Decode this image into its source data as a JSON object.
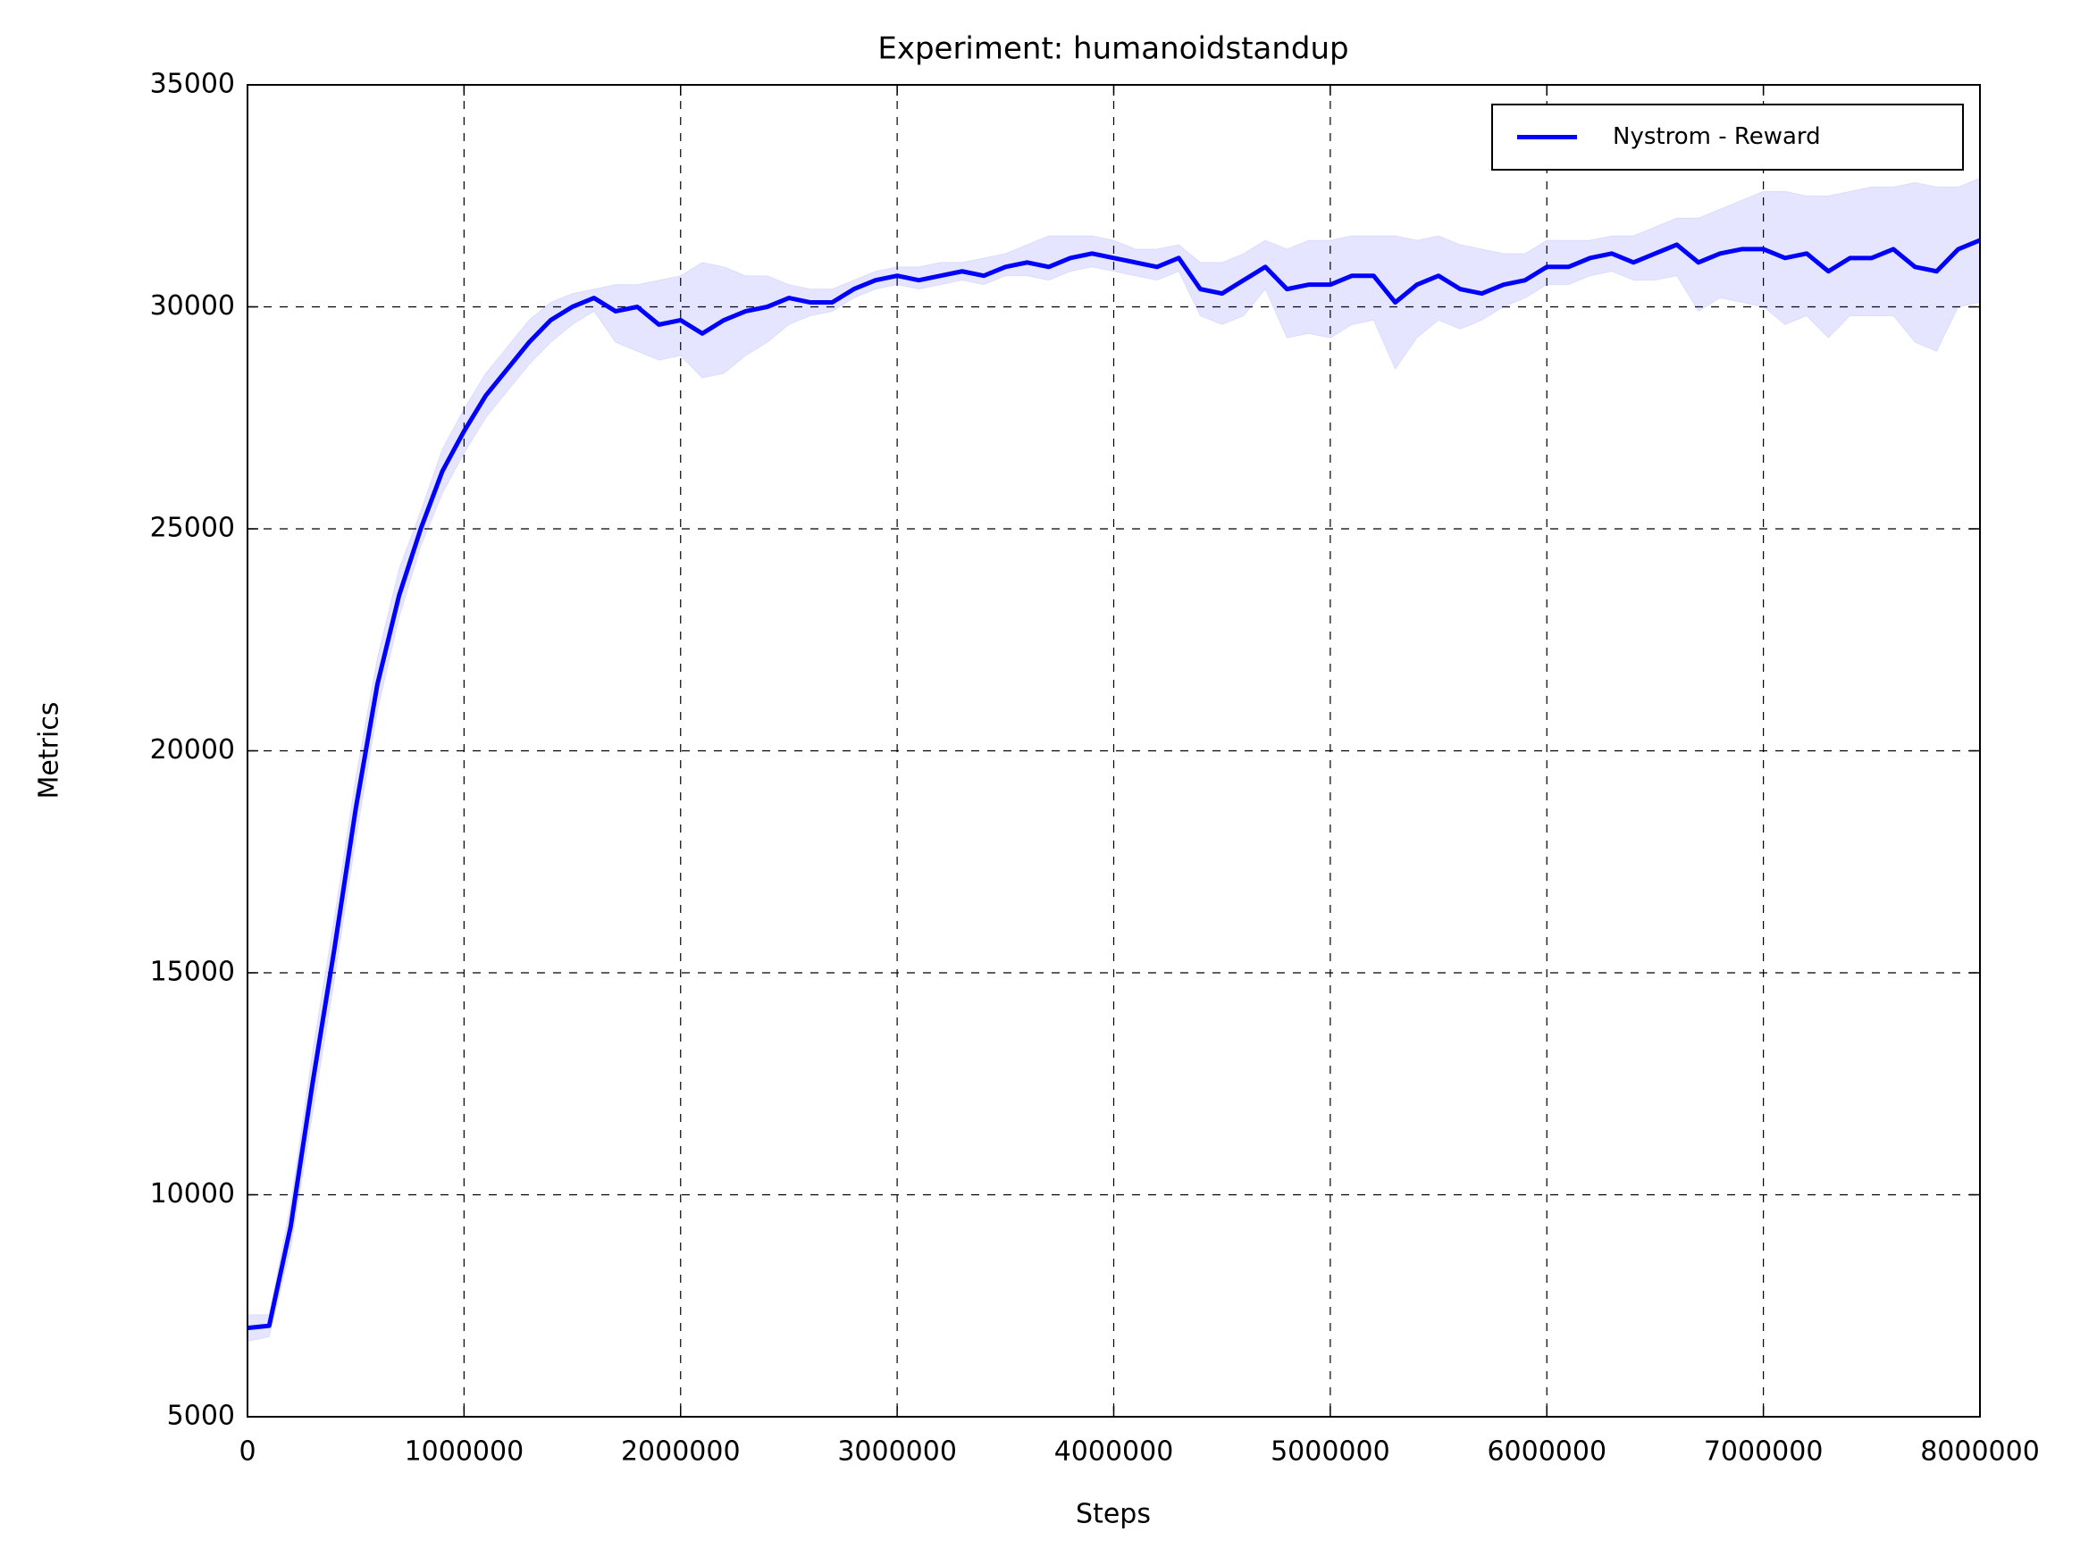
{
  "chart_data": {
    "type": "line",
    "title": "Experiment: humanoidstandup",
    "x_label": "Steps",
    "y_label": "Metrics",
    "x": [
      0,
      100000,
      200000,
      300000,
      400000,
      500000,
      600000,
      700000,
      800000,
      900000,
      1000000,
      1100000,
      1200000,
      1300000,
      1400000,
      1500000,
      1600000,
      1700000,
      1800000,
      1900000,
      2000000,
      2100000,
      2200000,
      2300000,
      2400000,
      2500000,
      2600000,
      2700000,
      2800000,
      2900000,
      3000000,
      3100000,
      3200000,
      3300000,
      3400000,
      3500000,
      3600000,
      3700000,
      3800000,
      3900000,
      4000000,
      4100000,
      4200000,
      4300000,
      4400000,
      4500000,
      4600000,
      4700000,
      4800000,
      4900000,
      5000000,
      5100000,
      5200000,
      5300000,
      5400000,
      5500000,
      5600000,
      5700000,
      5800000,
      5900000,
      6000000,
      6100000,
      6200000,
      6300000,
      6400000,
      6500000,
      6600000,
      6700000,
      6800000,
      6900000,
      7000000,
      7100000,
      7200000,
      7300000,
      7400000,
      7500000,
      7600000,
      7700000,
      7800000,
      7900000,
      8000000
    ],
    "series": [
      {
        "name": "Nystrom - Reward",
        "color": "#0000ff",
        "band_color": "#0000ff",
        "values": [
          7000,
          7050,
          9300,
          12500,
          15500,
          18700,
          21500,
          23500,
          25000,
          26300,
          27200,
          28000,
          28600,
          29200,
          29700,
          30000,
          30200,
          29900,
          30000,
          29600,
          29700,
          29400,
          29700,
          29900,
          30000,
          30200,
          30100,
          30100,
          30400,
          30600,
          30700,
          30600,
          30700,
          30800,
          30700,
          30900,
          31000,
          30900,
          31100,
          31200,
          31100,
          31000,
          30900,
          31100,
          30400,
          30300,
          30600,
          30900,
          30400,
          30500,
          30500,
          30700,
          30700,
          30100,
          30500,
          30700,
          30400,
          30300,
          30500,
          30600,
          30900,
          30900,
          31100,
          31200,
          31000,
          31200,
          31400,
          31000,
          31200,
          31300,
          31300,
          31100,
          31200,
          30800,
          31100,
          31100,
          31300,
          30900,
          30800,
          31300,
          31500
        ],
        "lower": [
          6700,
          6800,
          8800,
          11800,
          14800,
          18000,
          20900,
          23000,
          24600,
          25800,
          26700,
          27500,
          28100,
          28700,
          29200,
          29600,
          29900,
          29200,
          29000,
          28800,
          28900,
          28400,
          28500,
          28900,
          29200,
          29600,
          29800,
          29900,
          30200,
          30400,
          30500,
          30400,
          30500,
          30600,
          30500,
          30700,
          30700,
          30600,
          30800,
          30900,
          30800,
          30700,
          30600,
          30800,
          29800,
          29600,
          29800,
          30400,
          29300,
          29400,
          29300,
          29600,
          29700,
          28600,
          29300,
          29700,
          29500,
          29700,
          30000,
          30200,
          30500,
          30500,
          30700,
          30800,
          30600,
          30600,
          30700,
          29900,
          30200,
          30100,
          30000,
          29600,
          29800,
          29300,
          29800,
          29800,
          29800,
          29200,
          29000,
          30000,
          30100
        ],
        "upper": [
          7300,
          7300,
          9800,
          13200,
          16200,
          19400,
          22100,
          24100,
          25400,
          26800,
          27700,
          28500,
          29100,
          29700,
          30100,
          30300,
          30400,
          30500,
          30500,
          30600,
          30700,
          31000,
          30900,
          30700,
          30700,
          30500,
          30400,
          30400,
          30600,
          30800,
          30900,
          30900,
          31000,
          31000,
          31100,
          31200,
          31400,
          31600,
          31600,
          31600,
          31500,
          31300,
          31300,
          31400,
          31000,
          31000,
          31200,
          31500,
          31300,
          31500,
          31500,
          31600,
          31600,
          31600,
          31500,
          31600,
          31400,
          31300,
          31200,
          31200,
          31500,
          31500,
          31500,
          31600,
          31600,
          31800,
          32000,
          32000,
          32200,
          32400,
          32600,
          32600,
          32500,
          32500,
          32600,
          32700,
          32700,
          32800,
          32700,
          32700,
          32900
        ]
      }
    ],
    "xlim": [
      0,
      8000000
    ],
    "ylim": [
      5000,
      35000
    ],
    "xticks": [
      0,
      1000000,
      2000000,
      3000000,
      4000000,
      5000000,
      6000000,
      7000000,
      8000000
    ],
    "yticks": [
      5000,
      10000,
      15000,
      20000,
      25000,
      30000,
      35000
    ],
    "grid": true,
    "legend": "upper right"
  }
}
